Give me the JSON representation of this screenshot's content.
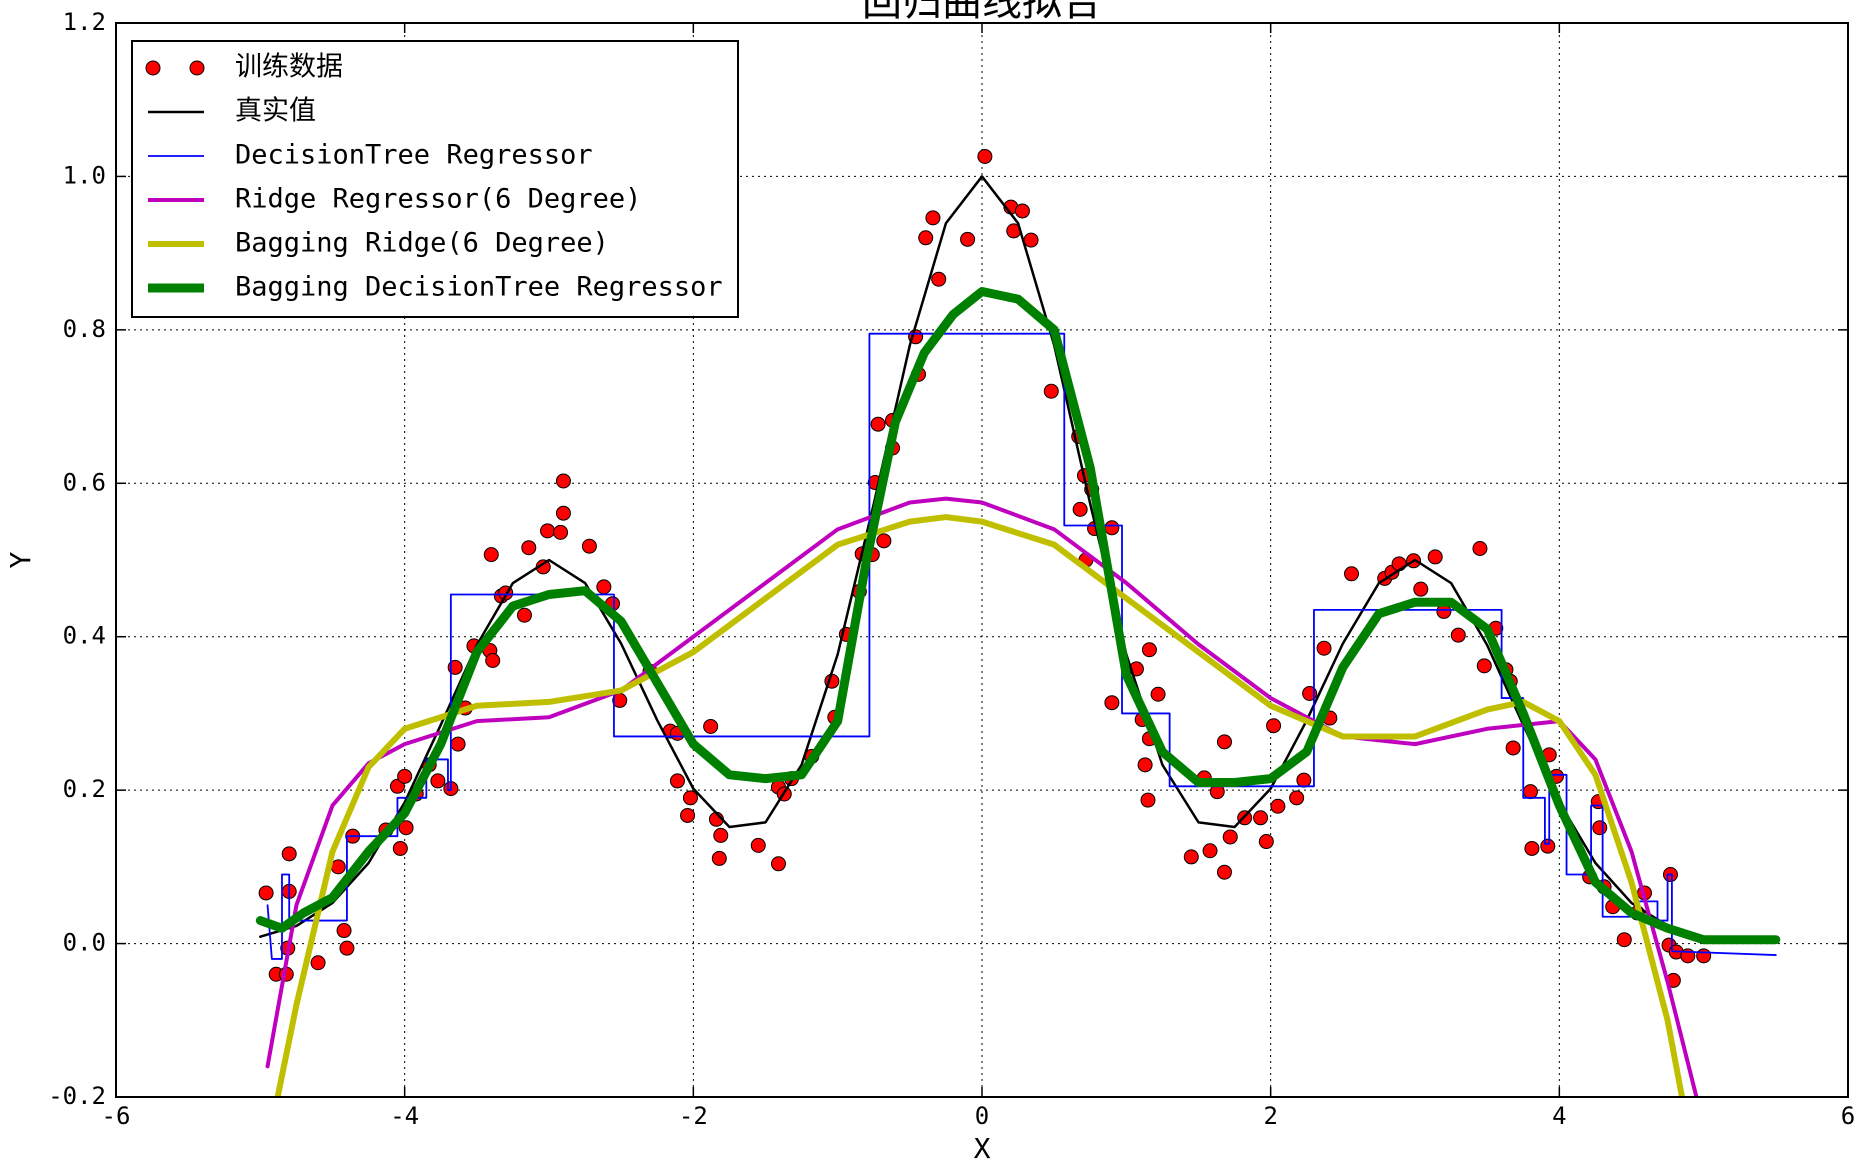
{
  "chart_data": {
    "type": "line",
    "title": "回归曲线拟合",
    "xlabel": "X",
    "ylabel": "Y",
    "xlim": [
      -6,
      6
    ],
    "ylim": [
      -0.2,
      1.2
    ],
    "xticks": [
      -6,
      -4,
      -2,
      {
        "value": 0,
        "label": "0"
      },
      2,
      4,
      6
    ],
    "yticks": [
      -0.2,
      {
        "value": 0,
        "label": "0.0"
      },
      0.2,
      0.4,
      0.6,
      0.8,
      {
        "value": 1,
        "label": "1.0"
      },
      1.2
    ],
    "grid": true,
    "legend": "upper left",
    "series": [
      {
        "name": "训练数据",
        "kind": "scatter",
        "color": "#ff0000",
        "x": [
          -4.96,
          -4.89,
          -4.82,
          -4.8,
          -4.8,
          -4.81,
          -4.6,
          -4.46,
          -4.42,
          -4.4,
          -4.36,
          -4.13,
          -4.05,
          -4.03,
          -4.0,
          -3.99,
          -3.92,
          -3.83,
          -3.77,
          -3.68,
          -3.63,
          -3.65,
          -3.58,
          -3.52,
          -3.41,
          -3.39,
          -3.4,
          -3.33,
          -3.3,
          -3.17,
          -3.14,
          -3.04,
          -3.01,
          -2.92,
          -2.9,
          -2.9,
          -2.72,
          -2.62,
          -2.56,
          -2.51,
          -2.3,
          -2.16,
          -2.11,
          -2.11,
          -2.04,
          -2.02,
          -1.88,
          -1.84,
          -1.81,
          -1.82,
          -1.55,
          -1.41,
          -1.41,
          -1.37,
          -1.32,
          -1.18,
          -1.04,
          -1.02,
          -0.94,
          -0.85,
          -0.83,
          -0.76,
          -0.74,
          -0.72,
          -0.68,
          -0.62,
          -0.62,
          -0.44,
          -0.46,
          -0.39,
          -0.34,
          -0.3,
          -0.1,
          0.02,
          0.2,
          0.22,
          0.28,
          0.34,
          0.48,
          0.67,
          0.68,
          0.71,
          0.72,
          0.76,
          0.78,
          0.9,
          0.9,
          1.07,
          1.16,
          1.11,
          1.13,
          1.15,
          1.16,
          1.22,
          1.45,
          1.54,
          1.58,
          1.63,
          1.68,
          1.68,
          1.72,
          1.82,
          1.93,
          1.97,
          2.02,
          2.05,
          2.18,
          2.23,
          2.27,
          2.37,
          2.41,
          2.56,
          2.79,
          2.84,
          2.89,
          2.99,
          3.04,
          3.14,
          3.2,
          3.3,
          3.45,
          3.48,
          3.56,
          3.63,
          3.66,
          3.68,
          3.8,
          3.81,
          3.92,
          3.93,
          3.98,
          4.21,
          4.27,
          4.28,
          4.31,
          4.37,
          4.45,
          4.54,
          4.59,
          4.76,
          4.77,
          4.79,
          4.81,
          4.89,
          5.0
        ],
        "values": [
          0.066,
          -0.04,
          -0.04,
          0.117,
          0.068,
          -0.006,
          -0.025,
          0.1,
          0.017,
          -0.006,
          0.14,
          0.148,
          0.205,
          0.124,
          0.218,
          0.151,
          0.195,
          0.233,
          0.212,
          0.202,
          0.26,
          0.36,
          0.307,
          0.388,
          0.382,
          0.369,
          0.507,
          0.453,
          0.457,
          0.428,
          0.516,
          0.491,
          0.538,
          0.536,
          0.561,
          0.603,
          0.518,
          0.465,
          0.443,
          0.317,
          0.355,
          0.277,
          0.274,
          0.212,
          0.167,
          0.19,
          0.283,
          0.162,
          0.141,
          0.111,
          0.128,
          0.204,
          0.104,
          0.195,
          0.215,
          0.244,
          0.342,
          0.295,
          0.403,
          0.459,
          0.508,
          0.507,
          0.601,
          0.677,
          0.525,
          0.682,
          0.646,
          0.742,
          0.791,
          0.92,
          0.946,
          0.866,
          0.918,
          1.026,
          0.96,
          0.929,
          0.955,
          0.917,
          0.72,
          0.661,
          0.566,
          0.61,
          0.5,
          0.592,
          0.541,
          0.542,
          0.314,
          0.358,
          0.383,
          0.292,
          0.233,
          0.187,
          0.267,
          0.325,
          0.113,
          0.216,
          0.121,
          0.198,
          0.263,
          0.093,
          0.139,
          0.164,
          0.164,
          0.133,
          0.284,
          0.179,
          0.19,
          0.213,
          0.326,
          0.385,
          0.294,
          0.482,
          0.476,
          0.484,
          0.495,
          0.499,
          0.462,
          0.504,
          0.433,
          0.402,
          0.515,
          0.362,
          0.411,
          0.357,
          0.342,
          0.255,
          0.198,
          0.124,
          0.127,
          0.246,
          0.218,
          0.087,
          0.185,
          0.151,
          0.074,
          0.048,
          0.005,
          0.04,
          0.066,
          -0.002,
          0.09,
          -0.048,
          -0.011,
          -0.016,
          -0.016
        ]
      },
      {
        "name": "真实值",
        "kind": "line",
        "color": "#000000",
        "linewidth": 2.5,
        "x": [
          -5,
          -4.75,
          -4.5,
          -4.25,
          -4,
          -3.75,
          -3.5,
          -3.25,
          -3,
          -2.75,
          -2.5,
          -2.25,
          -2,
          -1.75,
          -1.5,
          -1.25,
          -1,
          -0.75,
          -0.5,
          -0.25,
          0,
          0.25,
          0.5,
          0.75,
          1,
          1.25,
          1.5,
          1.75,
          2,
          2.25,
          2.5,
          2.75,
          3,
          3.25,
          3.5,
          3.75,
          4,
          4.25,
          4.5,
          4.75,
          5,
          5.25,
          5.5
        ],
        "values": [
          0.009,
          0.023,
          0.053,
          0.105,
          0.184,
          0.285,
          0.389,
          0.47,
          0.5,
          0.47,
          0.391,
          0.291,
          0.202,
          0.152,
          0.158,
          0.233,
          0.377,
          0.573,
          0.78,
          0.939,
          1.0,
          0.939,
          0.78,
          0.573,
          0.377,
          0.233,
          0.158,
          0.152,
          0.202,
          0.291,
          0.391,
          0.47,
          0.5,
          0.47,
          0.389,
          0.285,
          0.184,
          0.105,
          0.053,
          0.023,
          0.009,
          0.003,
          0.001
        ]
      },
      {
        "name": "DecisionTree Regressor",
        "kind": "line",
        "color": "#0000ff",
        "linewidth": 1.8,
        "x": [
          -4.95,
          -4.92,
          -4.85,
          -4.85,
          -4.8,
          -4.8,
          -4.4,
          -4.4,
          -4.05,
          -4.05,
          -3.85,
          -3.85,
          -3.7,
          -3.7,
          -3.68,
          -3.68,
          -2.55,
          -2.55,
          -0.78,
          -0.78,
          0.57,
          0.57,
          0.97,
          0.97,
          1.3,
          1.3,
          2.3,
          2.3,
          3.6,
          3.6,
          3.75,
          3.75,
          3.9,
          3.9,
          3.93,
          3.93,
          4.05,
          4.05,
          4.22,
          4.22,
          4.3,
          4.3,
          4.55,
          4.55,
          4.68,
          4.68,
          4.75,
          4.75,
          4.78,
          4.78,
          5.5
        ],
        "values": [
          0.05,
          -0.02,
          -0.02,
          0.09,
          0.09,
          0.03,
          0.03,
          0.14,
          0.14,
          0.19,
          0.19,
          0.24,
          0.24,
          0.2,
          0.2,
          0.455,
          0.455,
          0.27,
          0.27,
          0.795,
          0.795,
          0.545,
          0.545,
          0.3,
          0.3,
          0.205,
          0.205,
          0.435,
          0.435,
          0.32,
          0.32,
          0.19,
          0.19,
          0.13,
          0.13,
          0.22,
          0.22,
          0.09,
          0.09,
          0.18,
          0.18,
          0.035,
          0.035,
          0.055,
          0.055,
          0.03,
          0.03,
          0.09,
          0.09,
          -0.01,
          -0.015
        ]
      },
      {
        "name": "Ridge Regressor(6 Degree)",
        "kind": "line",
        "color": "#bf00bf",
        "linewidth": 4,
        "x": [
          -4.95,
          -4.75,
          -4.5,
          -4.25,
          -4,
          -3.5,
          -3,
          -2.5,
          -2,
          -1.5,
          -1,
          -0.5,
          -0.25,
          0,
          0.5,
          1,
          1.5,
          2,
          2.5,
          3,
          3.5,
          4,
          4.25,
          4.5,
          4.75,
          4.95
        ],
        "values": [
          -0.16,
          0.05,
          0.18,
          0.235,
          0.26,
          0.29,
          0.295,
          0.33,
          0.4,
          0.47,
          0.54,
          0.575,
          0.58,
          0.575,
          0.54,
          0.47,
          0.39,
          0.32,
          0.27,
          0.26,
          0.28,
          0.29,
          0.24,
          0.12,
          -0.05,
          -0.2
        ]
      },
      {
        "name": "Bagging Ridge(6 Degree)",
        "kind": "line",
        "color": "#bfbf00",
        "linewidth": 6,
        "x": [
          -4.88,
          -4.75,
          -4.5,
          -4.25,
          -4,
          -3.5,
          -3,
          -2.5,
          -2,
          -1.5,
          -1,
          -0.5,
          -0.25,
          0,
          0.5,
          1,
          1.5,
          2,
          2.5,
          3,
          3.5,
          3.75,
          4,
          4.25,
          4.5,
          4.75,
          4.85
        ],
        "values": [
          -0.2,
          -0.08,
          0.12,
          0.23,
          0.28,
          0.31,
          0.315,
          0.33,
          0.38,
          0.45,
          0.52,
          0.55,
          0.556,
          0.55,
          0.52,
          0.45,
          0.38,
          0.31,
          0.27,
          0.27,
          0.305,
          0.315,
          0.29,
          0.22,
          0.08,
          -0.1,
          -0.2
        ]
      },
      {
        "name": "Bagging DecisionTree Regressor",
        "kind": "line",
        "color": "#008000",
        "linewidth": 9,
        "x": [
          -5,
          -4.85,
          -4.7,
          -4.5,
          -4.25,
          -4,
          -3.75,
          -3.5,
          -3.25,
          -3,
          -2.75,
          -2.5,
          -2.25,
          -2,
          -1.75,
          -1.5,
          -1.25,
          -1,
          -0.8,
          -0.6,
          -0.4,
          -0.2,
          0,
          0.25,
          0.5,
          0.75,
          1,
          1.25,
          1.5,
          1.75,
          2,
          2.25,
          2.5,
          2.75,
          3,
          3.25,
          3.5,
          3.75,
          4,
          4.25,
          4.5,
          4.75,
          5,
          5.5
        ],
        "values": [
          0.03,
          0.02,
          0.04,
          0.06,
          0.12,
          0.17,
          0.26,
          0.38,
          0.44,
          0.455,
          0.46,
          0.42,
          0.34,
          0.26,
          0.22,
          0.215,
          0.22,
          0.29,
          0.5,
          0.68,
          0.77,
          0.82,
          0.85,
          0.84,
          0.8,
          0.62,
          0.35,
          0.25,
          0.21,
          0.21,
          0.215,
          0.25,
          0.36,
          0.43,
          0.445,
          0.445,
          0.41,
          0.3,
          0.18,
          0.08,
          0.04,
          0.02,
          0.005,
          0.005
        ]
      }
    ]
  }
}
